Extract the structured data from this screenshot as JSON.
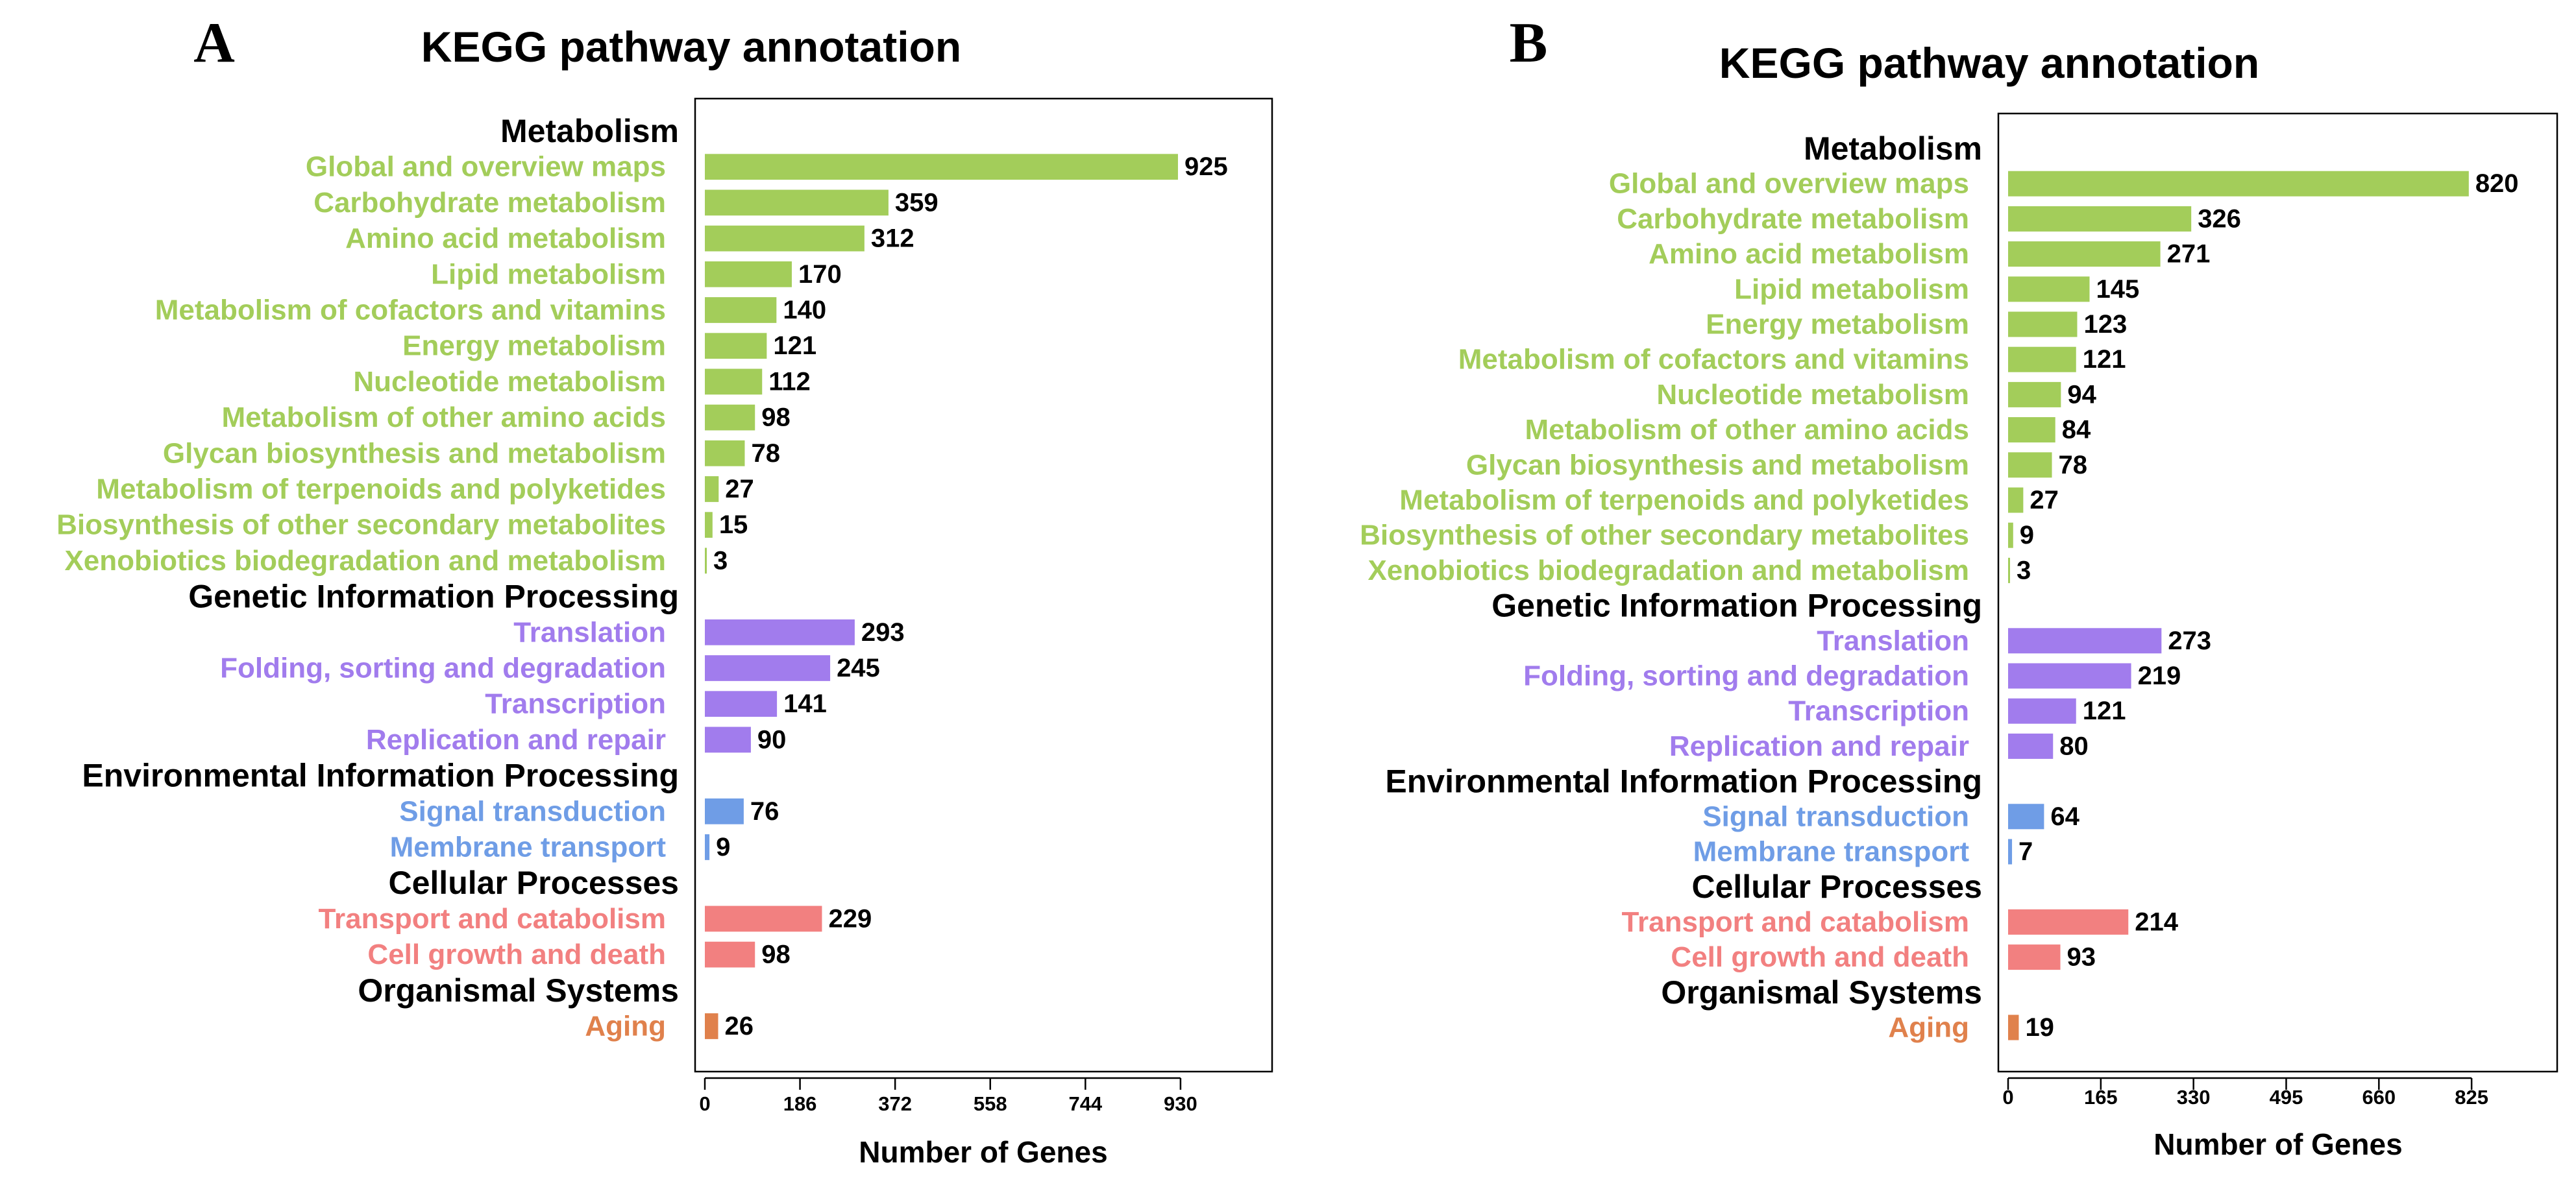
{
  "colors": {
    "Metabolism": "#a3cd5a",
    "Genetic Information Processing": "#a17ced",
    "Environmental Information Processing": "#6f9de6",
    "Cellular Processes": "#f28080",
    "Organismal Systems": "#e0814c"
  },
  "chart_data": [
    {
      "panel": "A",
      "type": "bar",
      "orientation": "horizontal",
      "title": "KEGG pathway annotation",
      "xlabel": "Number of Genes",
      "xticks": [
        0,
        186,
        372,
        558,
        744,
        930
      ],
      "xlim": [
        0,
        1090
      ],
      "groups": [
        {
          "name": "Metabolism",
          "items": [
            {
              "label": "Global and overview maps",
              "value": 925
            },
            {
              "label": "Carbohydrate metabolism",
              "value": 359
            },
            {
              "label": "Amino acid metabolism",
              "value": 312
            },
            {
              "label": "Lipid metabolism",
              "value": 170
            },
            {
              "label": "Metabolism of cofactors and vitamins",
              "value": 140
            },
            {
              "label": "Energy metabolism",
              "value": 121
            },
            {
              "label": "Nucleotide metabolism",
              "value": 112
            },
            {
              "label": "Metabolism of other amino acids",
              "value": 98
            },
            {
              "label": "Glycan biosynthesis and metabolism",
              "value": 78
            },
            {
              "label": "Metabolism of terpenoids and polyketides",
              "value": 27
            },
            {
              "label": "Biosynthesis of other secondary metabolites",
              "value": 15
            },
            {
              "label": "Xenobiotics biodegradation and metabolism",
              "value": 3
            }
          ]
        },
        {
          "name": "Genetic Information Processing",
          "items": [
            {
              "label": "Translation",
              "value": 293
            },
            {
              "label": "Folding, sorting and degradation",
              "value": 245
            },
            {
              "label": "Transcription",
              "value": 141
            },
            {
              "label": "Replication and repair",
              "value": 90
            }
          ]
        },
        {
          "name": "Environmental Information Processing",
          "items": [
            {
              "label": "Signal transduction",
              "value": 76
            },
            {
              "label": "Membrane transport",
              "value": 9
            }
          ]
        },
        {
          "name": "Cellular Processes",
          "items": [
            {
              "label": "Transport and catabolism",
              "value": 229
            },
            {
              "label": "Cell growth and death",
              "value": 98
            }
          ]
        },
        {
          "name": "Organismal Systems",
          "items": [
            {
              "label": "Aging",
              "value": 26
            }
          ]
        }
      ]
    },
    {
      "panel": "B",
      "type": "bar",
      "orientation": "horizontal",
      "title": "KEGG pathway annotation",
      "xlabel": "Number of Genes",
      "xticks": [
        0,
        165,
        330,
        495,
        660,
        825
      ],
      "xlim": [
        0,
        960
      ],
      "groups": [
        {
          "name": "Metabolism",
          "items": [
            {
              "label": "Global and overview maps",
              "value": 820
            },
            {
              "label": "Carbohydrate metabolism",
              "value": 326
            },
            {
              "label": "Amino acid metabolism",
              "value": 271
            },
            {
              "label": "Lipid metabolism",
              "value": 145
            },
            {
              "label": "Energy metabolism",
              "value": 123
            },
            {
              "label": "Metabolism of cofactors and vitamins",
              "value": 121
            },
            {
              "label": "Nucleotide metabolism",
              "value": 94
            },
            {
              "label": "Metabolism of other amino acids",
              "value": 84
            },
            {
              "label": "Glycan biosynthesis and metabolism",
              "value": 78
            },
            {
              "label": "Metabolism of terpenoids and polyketides",
              "value": 27
            },
            {
              "label": "Biosynthesis of other secondary metabolites",
              "value": 9
            },
            {
              "label": "Xenobiotics biodegradation and metabolism",
              "value": 3
            }
          ]
        },
        {
          "name": "Genetic Information Processing",
          "items": [
            {
              "label": "Translation",
              "value": 273
            },
            {
              "label": "Folding, sorting and degradation",
              "value": 219
            },
            {
              "label": "Transcription",
              "value": 121
            },
            {
              "label": "Replication and repair",
              "value": 80
            }
          ]
        },
        {
          "name": "Environmental Information Processing",
          "items": [
            {
              "label": "Signal transduction",
              "value": 64
            },
            {
              "label": "Membrane transport",
              "value": 7
            }
          ]
        },
        {
          "name": "Cellular Processes",
          "items": [
            {
              "label": "Transport and catabolism",
              "value": 214
            },
            {
              "label": "Cell growth and death",
              "value": 93
            }
          ]
        },
        {
          "name": "Organismal Systems",
          "items": [
            {
              "label": "Aging",
              "value": 19
            }
          ]
        }
      ]
    }
  ]
}
